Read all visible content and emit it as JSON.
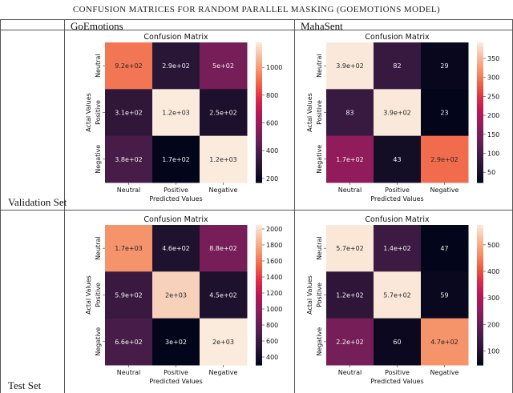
{
  "caption": "Confusion Matrices for Random Parallel Masking (GoEmotions Model)",
  "table": {
    "columns": [
      "",
      "GoEmotions",
      "MahaSent"
    ],
    "rows": [
      "Validation Set",
      "Test Set"
    ]
  },
  "chart_data": [
    {
      "type": "heatmap",
      "dataset": "GoEmotions",
      "split": "Validation Set",
      "title": "Confusion Matrix",
      "xlabel": "Predicted Values",
      "ylabel": "Actal Values",
      "x_categories": [
        "Neutral",
        "Positive",
        "Negative"
      ],
      "y_categories": [
        "Neutral",
        "Positive",
        "Negative"
      ],
      "values": [
        [
          920,
          290,
          500
        ],
        [
          310,
          1200,
          250
        ],
        [
          380,
          170,
          1200
        ]
      ],
      "annotations": [
        [
          "9.2e+02",
          "2.9e+02",
          "5e+02"
        ],
        [
          "3.1e+02",
          "1.2e+03",
          "2.5e+02"
        ],
        [
          "3.8e+02",
          "1.7e+02",
          "1.2e+03"
        ]
      ],
      "colorbar": {
        "min": 170,
        "max": 1180,
        "ticks": [
          200,
          400,
          600,
          800,
          1000
        ]
      },
      "colormap": "rocket"
    },
    {
      "type": "heatmap",
      "dataset": "MahaSent",
      "split": "Validation Set",
      "title": "Confusion Matrix",
      "xlabel": "Predicted Values",
      "ylabel": "Actal Values",
      "x_categories": [
        "Neutral",
        "Positive",
        "Negative"
      ],
      "y_categories": [
        "Neutral",
        "Positive",
        "Negative"
      ],
      "values": [
        [
          390,
          82,
          29
        ],
        [
          83,
          390,
          23
        ],
        [
          170,
          43,
          290
        ]
      ],
      "annotations": [
        [
          "3.9e+02",
          "82",
          "29"
        ],
        [
          "83",
          "3.9e+02",
          "23"
        ],
        [
          "1.7e+02",
          "43",
          "2.9e+02"
        ]
      ],
      "colorbar": {
        "min": 23,
        "max": 392,
        "ticks": [
          50,
          100,
          150,
          200,
          250,
          300,
          350
        ]
      },
      "colormap": "rocket"
    },
    {
      "type": "heatmap",
      "dataset": "GoEmotions",
      "split": "Test Set",
      "title": "Confusion Matrix",
      "xlabel": "Predicted Values",
      "ylabel": "Actal Values",
      "x_categories": [
        "Neutral",
        "Positive",
        "Negative"
      ],
      "y_categories": [
        "Neutral",
        "Positive",
        "Negative"
      ],
      "values": [
        [
          1700,
          460,
          880
        ],
        [
          590,
          1950,
          450
        ],
        [
          660,
          300,
          2050
        ]
      ],
      "annotations": [
        [
          "1.7e+03",
          "4.6e+02",
          "8.8e+02"
        ],
        [
          "5.9e+02",
          "2e+03",
          "4.5e+02"
        ],
        [
          "6.6e+02",
          "3e+02",
          "2e+03"
        ]
      ],
      "colorbar": {
        "min": 300,
        "max": 2050,
        "ticks": [
          400,
          600,
          800,
          1000,
          1200,
          1400,
          1600,
          1800,
          2000
        ]
      },
      "colormap": "rocket"
    },
    {
      "type": "heatmap",
      "dataset": "MahaSent",
      "split": "Test Set",
      "title": "Confusion Matrix",
      "xlabel": "Predicted Values",
      "ylabel": "Actal Values",
      "x_categories": [
        "Neutral",
        "Positive",
        "Negative"
      ],
      "y_categories": [
        "Neutral",
        "Positive",
        "Negative"
      ],
      "values": [
        [
          570,
          140,
          47
        ],
        [
          120,
          570,
          59
        ],
        [
          220,
          60,
          470
        ]
      ],
      "annotations": [
        [
          "5.7e+02",
          "1.4e+02",
          "47"
        ],
        [
          "1.2e+02",
          "5.7e+02",
          "59"
        ],
        [
          "2.2e+02",
          "60",
          "4.7e+02"
        ]
      ],
      "colorbar": {
        "min": 47,
        "max": 575,
        "ticks": [
          100,
          200,
          300,
          400,
          500
        ]
      },
      "colormap": "rocket"
    }
  ]
}
